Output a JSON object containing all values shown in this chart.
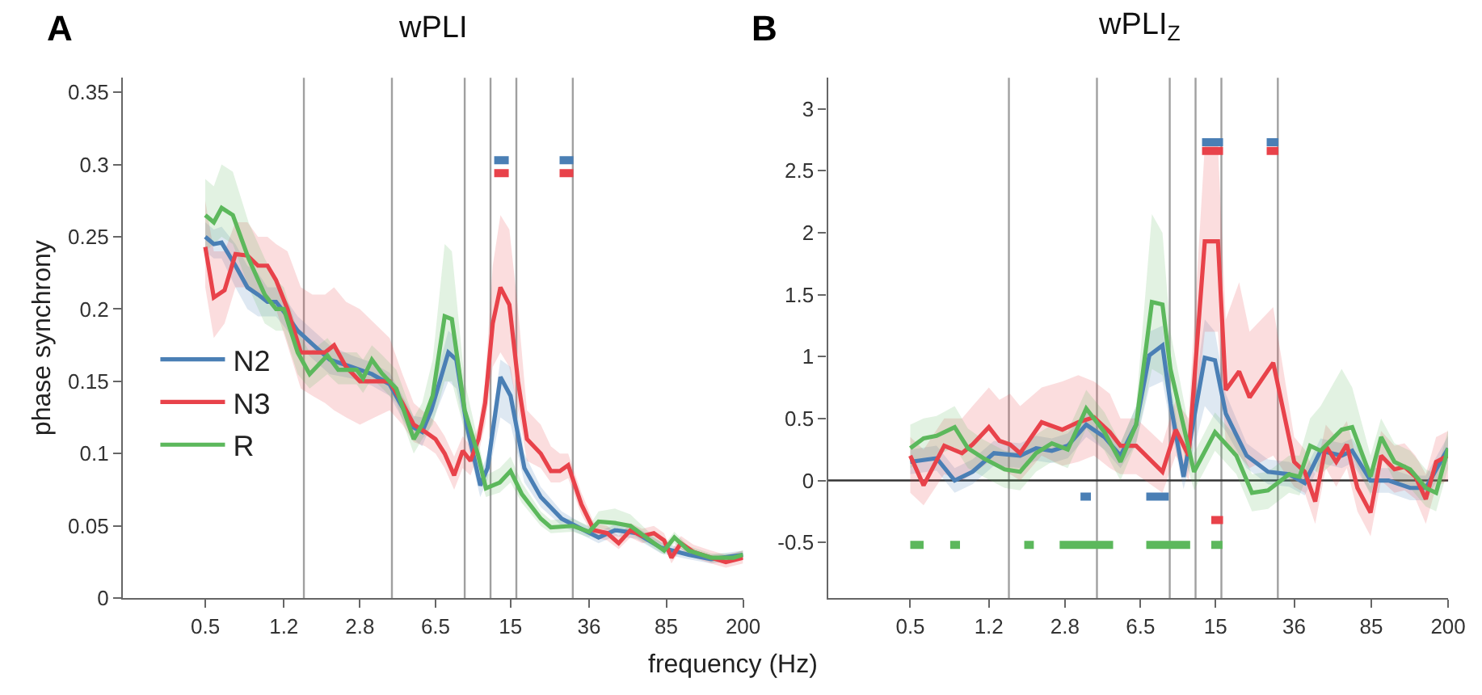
{
  "chart_data": [
    {
      "type": "line",
      "title": "wPLI",
      "xlabel": "frequency (Hz)",
      "ylabel": "phase synchrony",
      "annotations": [
        "A"
      ],
      "log": "x",
      "legend": "bottom left",
      "grid": false,
      "xlim": [
        0.2,
        200
      ],
      "xticks": [
        0.5,
        1.2,
        2.8,
        6.5,
        15,
        36,
        85,
        200
      ],
      "ylim": [
        0,
        0.36
      ],
      "yticks": [
        0,
        0.05,
        0.1,
        0.15,
        0.2,
        0.25,
        0.3,
        0.35
      ],
      "ref_lines": [
        {
          "axis": "x",
          "value": 1.5,
          "color": "#a0a0a0"
        },
        {
          "axis": "x",
          "value": 4,
          "color": "#a0a0a0"
        },
        {
          "axis": "x",
          "value": 9,
          "color": "#a0a0a0"
        },
        {
          "axis": "x",
          "value": 12,
          "color": "#a0a0a0"
        },
        {
          "axis": "x",
          "value": 16,
          "color": "#a0a0a0"
        },
        {
          "axis": "x",
          "value": 30,
          "color": "#a0a0a0"
        }
      ],
      "series": [
        {
          "name": "N2",
          "color": "#4a7fb5",
          "x": [
            0.5,
            0.55,
            0.6,
            0.7,
            0.8,
            0.9,
            1.0,
            1.1,
            1.25,
            1.4,
            1.67,
            2.0,
            2.55,
            3.2,
            3.9,
            5.1,
            5.6,
            6.2,
            7.5,
            8.2,
            9.2,
            10.7,
            11.6,
            13.4,
            15,
            17.5,
            21,
            26.5,
            33,
            40,
            48,
            61,
            80,
            109,
            140,
            200
          ],
          "values": [
            0.25,
            0.245,
            0.246,
            0.23,
            0.215,
            0.21,
            0.205,
            0.205,
            0.195,
            0.185,
            0.175,
            0.165,
            0.16,
            0.155,
            0.148,
            0.118,
            0.115,
            0.13,
            0.17,
            0.165,
            0.12,
            0.078,
            0.09,
            0.153,
            0.14,
            0.09,
            0.07,
            0.055,
            0.048,
            0.042,
            0.047,
            0.045,
            0.035,
            0.03,
            0.027,
            0.03
          ],
          "lower": [
            0.24,
            0.235,
            0.235,
            0.215,
            0.2,
            0.195,
            0.195,
            0.195,
            0.185,
            0.175,
            0.165,
            0.155,
            0.152,
            0.147,
            0.14,
            0.11,
            0.105,
            0.12,
            0.15,
            0.145,
            0.11,
            0.07,
            0.082,
            0.125,
            0.12,
            0.08,
            0.063,
            0.05,
            0.044,
            0.038,
            0.043,
            0.041,
            0.031,
            0.027,
            0.024,
            0.027
          ],
          "upper": [
            0.26,
            0.255,
            0.257,
            0.245,
            0.23,
            0.225,
            0.215,
            0.215,
            0.205,
            0.195,
            0.185,
            0.175,
            0.168,
            0.163,
            0.156,
            0.126,
            0.125,
            0.14,
            0.185,
            0.18,
            0.13,
            0.086,
            0.1,
            0.165,
            0.16,
            0.1,
            0.077,
            0.06,
            0.052,
            0.046,
            0.051,
            0.049,
            0.039,
            0.033,
            0.03,
            0.033
          ]
        },
        {
          "name": "N3",
          "color": "#e8424a",
          "x": [
            0.5,
            0.55,
            0.62,
            0.7,
            0.8,
            0.9,
            1.0,
            1.1,
            1.25,
            1.45,
            1.65,
            1.9,
            2.1,
            2.4,
            2.8,
            3.3,
            3.9,
            4.5,
            5.1,
            5.8,
            6.5,
            7.2,
            8.0,
            8.8,
            9.6,
            10.5,
            11.3,
            12.3,
            13.4,
            14.8,
            16.3,
            18,
            21,
            23.5,
            26,
            28.5,
            33,
            38,
            44,
            50,
            57,
            65,
            74,
            83,
            90,
            100,
            115,
            140,
            165,
            200
          ],
          "values": [
            0.243,
            0.208,
            0.213,
            0.238,
            0.237,
            0.23,
            0.23,
            0.22,
            0.2,
            0.17,
            0.17,
            0.17,
            0.175,
            0.16,
            0.15,
            0.15,
            0.15,
            0.135,
            0.12,
            0.115,
            0.11,
            0.1,
            0.085,
            0.102,
            0.095,
            0.11,
            0.135,
            0.19,
            0.215,
            0.203,
            0.15,
            0.11,
            0.1,
            0.088,
            0.088,
            0.092,
            0.065,
            0.047,
            0.045,
            0.038,
            0.047,
            0.043,
            0.045,
            0.04,
            0.028,
            0.038,
            0.032,
            0.028,
            0.025,
            0.028
          ],
          "lower": [
            0.215,
            0.18,
            0.19,
            0.215,
            0.215,
            0.21,
            0.21,
            0.2,
            0.175,
            0.145,
            0.14,
            0.135,
            0.13,
            0.125,
            0.12,
            0.125,
            0.13,
            0.12,
            0.108,
            0.105,
            0.1,
            0.09,
            0.075,
            0.09,
            0.085,
            0.1,
            0.12,
            0.16,
            0.17,
            0.16,
            0.13,
            0.095,
            0.09,
            0.08,
            0.08,
            0.083,
            0.058,
            0.042,
            0.04,
            0.034,
            0.042,
            0.038,
            0.04,
            0.036,
            0.024,
            0.034,
            0.028,
            0.024,
            0.021,
            0.024
          ],
          "upper": [
            0.275,
            0.24,
            0.24,
            0.26,
            0.26,
            0.25,
            0.25,
            0.245,
            0.24,
            0.215,
            0.21,
            0.21,
            0.215,
            0.205,
            0.2,
            0.19,
            0.18,
            0.155,
            0.135,
            0.128,
            0.122,
            0.112,
            0.098,
            0.112,
            0.105,
            0.12,
            0.15,
            0.23,
            0.265,
            0.255,
            0.2,
            0.13,
            0.12,
            0.105,
            0.1,
            0.1,
            0.073,
            0.052,
            0.05,
            0.043,
            0.052,
            0.048,
            0.05,
            0.045,
            0.033,
            0.043,
            0.037,
            0.033,
            0.03,
            0.033
          ]
        },
        {
          "name": "R",
          "color": "#5cb85c",
          "x": [
            0.5,
            0.55,
            0.6,
            0.68,
            0.81,
            0.97,
            1.1,
            1.2,
            1.4,
            1.6,
            1.95,
            2.2,
            2.7,
            2.9,
            3.2,
            3.6,
            4.2,
            5.1,
            5.6,
            6.3,
            7.2,
            7.8,
            9,
            10.4,
            11.4,
            13.3,
            15,
            17,
            21,
            23.5,
            30,
            36,
            40,
            48,
            57,
            71,
            83,
            93,
            109,
            140,
            180,
            200
          ],
          "values": [
            0.265,
            0.26,
            0.27,
            0.265,
            0.235,
            0.21,
            0.2,
            0.2,
            0.17,
            0.155,
            0.168,
            0.158,
            0.158,
            0.152,
            0.165,
            0.155,
            0.145,
            0.11,
            0.12,
            0.14,
            0.195,
            0.193,
            0.13,
            0.1,
            0.076,
            0.08,
            0.088,
            0.072,
            0.055,
            0.049,
            0.05,
            0.046,
            0.053,
            0.052,
            0.05,
            0.04,
            0.033,
            0.042,
            0.033,
            0.028,
            0.028,
            0.03
          ],
          "lower": [
            0.24,
            0.245,
            0.25,
            0.245,
            0.215,
            0.19,
            0.185,
            0.185,
            0.155,
            0.145,
            0.155,
            0.148,
            0.148,
            0.142,
            0.152,
            0.145,
            0.135,
            0.1,
            0.11,
            0.12,
            0.15,
            0.15,
            0.115,
            0.09,
            0.07,
            0.073,
            0.08,
            0.066,
            0.05,
            0.045,
            0.046,
            0.042,
            0.048,
            0.047,
            0.045,
            0.036,
            0.03,
            0.038,
            0.03,
            0.025,
            0.025,
            0.027
          ],
          "upper": [
            0.29,
            0.285,
            0.3,
            0.295,
            0.26,
            0.235,
            0.22,
            0.215,
            0.185,
            0.17,
            0.18,
            0.17,
            0.17,
            0.165,
            0.175,
            0.168,
            0.158,
            0.125,
            0.135,
            0.165,
            0.245,
            0.24,
            0.15,
            0.11,
            0.085,
            0.09,
            0.098,
            0.08,
            0.06,
            0.054,
            0.055,
            0.05,
            0.06,
            0.062,
            0.058,
            0.045,
            0.037,
            0.046,
            0.036,
            0.031,
            0.031,
            0.033
          ]
        },
        {
          "color": "#4a7fb5",
          "x": [
            12.5,
            14.7
          ],
          "values": [
            0.303,
            0.303
          ]
        },
        {
          "color": "#4a7fb5",
          "x": [
            25.9,
            30.2
          ],
          "values": [
            0.303,
            0.303
          ]
        },
        {
          "color": "#e8424a",
          "x": [
            12.5,
            14.7
          ],
          "values": [
            0.294,
            0.294
          ]
        },
        {
          "color": "#e8424a",
          "x": [
            25.9,
            30.2
          ],
          "values": [
            0.294,
            0.294
          ]
        }
      ]
    },
    {
      "type": "line",
      "title": "wPLI$_{Z}$",
      "annotations": [
        "B"
      ],
      "log": "x",
      "grid": false,
      "xlim": [
        0.2,
        200
      ],
      "xticks": [
        0.5,
        1.2,
        2.8,
        6.5,
        15,
        36,
        85,
        200
      ],
      "ylim": [
        -0.95,
        3.25
      ],
      "yticks": [
        -0.5,
        0,
        0.5,
        1,
        1.5,
        2,
        2.5,
        3
      ],
      "ref_lines": [
        {
          "axis": "x",
          "value": 1.5,
          "color": "#a0a0a0"
        },
        {
          "axis": "x",
          "value": 4,
          "color": "#a0a0a0"
        },
        {
          "axis": "x",
          "value": 9,
          "color": "#a0a0a0"
        },
        {
          "axis": "x",
          "value": 12,
          "color": "#a0a0a0"
        },
        {
          "axis": "x",
          "value": 16,
          "color": "#a0a0a0"
        },
        {
          "axis": "x",
          "value": 30,
          "color": "#a0a0a0"
        },
        {
          "axis": "y",
          "value": 0,
          "color": "#333333"
        }
      ],
      "series": [
        {
          "color": "#4a7fb5",
          "x": [
            0.5,
            0.67,
            0.82,
            1.0,
            1.27,
            1.7,
            2.03,
            2.42,
            2.89,
            3.55,
            4.35,
            5.2,
            6.19,
            7.17,
            8.3,
            9.07,
            10.5,
            13.3,
            14.9,
            16.8,
            21.2,
            26.9,
            34,
            40.5,
            48.3,
            61.1,
            68.7,
            84.3,
            103,
            131,
            156,
            200
          ],
          "values": [
            0.15,
            0.18,
            0.0,
            0.07,
            0.22,
            0.2,
            0.26,
            0.24,
            0.28,
            0.45,
            0.35,
            0.2,
            0.45,
            1.01,
            1.09,
            0.62,
            0.03,
            0.99,
            0.97,
            0.54,
            0.2,
            0.07,
            0.05,
            -0.02,
            0.24,
            0.2,
            0.24,
            0.0,
            0.0,
            -0.06,
            -0.06,
            0.26
          ],
          "lower": [
            0.05,
            0.08,
            -0.1,
            -0.03,
            0.12,
            0.1,
            0.16,
            0.14,
            0.18,
            0.35,
            0.25,
            0.1,
            0.3,
            0.75,
            0.8,
            0.45,
            -0.07,
            0.6,
            0.5,
            0.4,
            0.1,
            -0.03,
            -0.05,
            -0.12,
            0.14,
            0.1,
            0.14,
            -0.1,
            -0.1,
            -0.16,
            -0.16,
            0.16
          ],
          "upper": [
            0.25,
            0.28,
            0.1,
            0.17,
            0.32,
            0.3,
            0.36,
            0.34,
            0.38,
            0.55,
            0.45,
            0.3,
            0.6,
            1.2,
            1.25,
            0.8,
            0.13,
            1.3,
            1.2,
            0.7,
            0.3,
            0.17,
            0.15,
            0.08,
            0.34,
            0.3,
            0.34,
            0.1,
            0.1,
            0.04,
            0.04,
            0.36
          ]
        },
        {
          "color": "#e8424a",
          "x": [
            0.5,
            0.58,
            0.73,
            0.89,
            1.0,
            1.2,
            1.35,
            1.52,
            1.7,
            2.16,
            2.72,
            3.25,
            3.87,
            4.62,
            5.2,
            6.19,
            8.3,
            9.62,
            11.1,
            13.3,
            15.4,
            16.8,
            19.5,
            21.9,
            28.5,
            36,
            40.5,
            45.5,
            51.2,
            57.5,
            64.7,
            72.8,
            84.3,
            94.8,
            110,
            123,
            139,
            156,
            175,
            200
          ],
          "values": [
            0.2,
            -0.04,
            0.28,
            0.22,
            0.29,
            0.43,
            0.32,
            0.29,
            0.22,
            0.47,
            0.41,
            0.47,
            0.51,
            0.39,
            0.28,
            0.28,
            0.07,
            0.41,
            0.2,
            1.93,
            1.93,
            0.73,
            0.88,
            0.67,
            0.95,
            0.15,
            0.07,
            -0.17,
            0.28,
            0.15,
            0.29,
            -0.06,
            -0.26,
            0.2,
            0.09,
            0.11,
            0.03,
            -0.15,
            0.15,
            0.2
          ],
          "lower": [
            -0.1,
            -0.2,
            0.05,
            0.0,
            0.05,
            0.15,
            0.1,
            0.05,
            0.0,
            0.2,
            0.12,
            0.15,
            0.2,
            0.1,
            0.05,
            0.05,
            -0.1,
            0.2,
            0.0,
            1.2,
            1.2,
            0.3,
            0.2,
            0.1,
            0.2,
            -0.05,
            -0.1,
            -0.35,
            0.1,
            -0.05,
            0.1,
            -0.25,
            -0.45,
            0.0,
            -0.1,
            -0.08,
            -0.15,
            -0.35,
            -0.05,
            0.0
          ],
          "upper": [
            0.35,
            0.25,
            0.5,
            0.5,
            0.6,
            0.75,
            0.65,
            0.7,
            0.6,
            0.75,
            0.8,
            0.85,
            0.8,
            0.7,
            0.5,
            0.5,
            0.3,
            0.65,
            0.5,
            2.7,
            2.7,
            1.3,
            1.6,
            1.2,
            1.4,
            0.35,
            0.25,
            0.05,
            0.45,
            0.35,
            0.48,
            0.15,
            -0.05,
            0.4,
            0.28,
            0.3,
            0.2,
            0.05,
            0.35,
            0.4
          ]
        },
        {
          "color": "#5cb85c",
          "x": [
            0.5,
            0.58,
            0.67,
            0.82,
            0.95,
            1.13,
            1.43,
            1.7,
            2.03,
            2.42,
            2.89,
            3.55,
            4.35,
            5.2,
            6.19,
            7.38,
            8.3,
            9.07,
            11.8,
            14.9,
            18.9,
            22.5,
            26.9,
            34,
            38.2,
            43,
            48.3,
            61.1,
            68.7,
            84.3,
            94.8,
            110,
            131,
            156,
            175,
            200
          ],
          "values": [
            0.26,
            0.34,
            0.36,
            0.43,
            0.26,
            0.18,
            0.09,
            0.07,
            0.22,
            0.3,
            0.25,
            0.58,
            0.39,
            0.15,
            0.45,
            1.44,
            1.42,
            0.9,
            0.07,
            0.39,
            0.2,
            -0.1,
            -0.08,
            0.05,
            0.03,
            0.28,
            0.24,
            0.41,
            0.43,
            0.03,
            0.35,
            0.15,
            0.09,
            -0.06,
            -0.1,
            0.26
          ],
          "lower": [
            0.1,
            0.18,
            0.2,
            0.27,
            0.1,
            0.03,
            -0.06,
            -0.08,
            0.07,
            0.15,
            0.1,
            0.42,
            0.24,
            0.0,
            0.3,
            0.9,
            0.85,
            0.6,
            -0.08,
            0.24,
            0.05,
            -0.25,
            -0.23,
            -0.1,
            -0.12,
            0.1,
            0.05,
            0.2,
            0.2,
            -0.12,
            0.2,
            0.0,
            -0.06,
            -0.21,
            -0.25,
            0.1
          ],
          "upper": [
            0.45,
            0.5,
            0.52,
            0.6,
            0.42,
            0.33,
            0.24,
            0.22,
            0.37,
            0.45,
            0.4,
            0.73,
            0.55,
            0.3,
            0.6,
            2.15,
            2.0,
            1.2,
            0.22,
            0.55,
            0.35,
            0.05,
            0.07,
            0.2,
            0.2,
            0.5,
            0.6,
            0.9,
            0.75,
            0.2,
            0.5,
            0.3,
            0.24,
            0.09,
            0.05,
            0.41
          ]
        },
        {
          "color": "#4a7fb5",
          "x": [
            12.9,
            16.3
          ],
          "values": [
            2.73,
            2.73
          ]
        },
        {
          "color": "#4a7fb5",
          "x": [
            26.5,
            30.2
          ],
          "values": [
            2.73,
            2.73
          ]
        },
        {
          "color": "#e8424a",
          "x": [
            12.9,
            16.3
          ],
          "values": [
            2.66,
            2.66
          ]
        },
        {
          "color": "#e8424a",
          "x": [
            26.5,
            30.2
          ],
          "values": [
            2.66,
            2.66
          ]
        },
        {
          "color": "#4a7fb5",
          "x": [
            3.33,
            3.74
          ],
          "values": [
            -0.13,
            -0.13
          ]
        },
        {
          "color": "#4a7fb5",
          "x": [
            6.93,
            8.9
          ],
          "values": [
            -0.13,
            -0.13
          ]
        },
        {
          "color": "#e8424a",
          "x": [
            14.3,
            16.3
          ],
          "values": [
            -0.32,
            -0.32
          ]
        },
        {
          "color": "#5cb85c",
          "x": [
            0.5,
            0.58
          ],
          "values": [
            -0.52,
            -0.52
          ]
        },
        {
          "color": "#5cb85c",
          "x": [
            0.78,
            0.87
          ],
          "values": [
            -0.52,
            -0.52
          ]
        },
        {
          "color": "#5cb85c",
          "x": [
            1.78,
            1.98
          ],
          "values": [
            -0.52,
            -0.52
          ]
        },
        {
          "color": "#5cb85c",
          "x": [
            2.64,
            4.79
          ],
          "values": [
            -0.52,
            -0.52
          ]
        },
        {
          "color": "#5cb85c",
          "x": [
            6.93,
            11.3
          ],
          "values": [
            -0.52,
            -0.52
          ]
        },
        {
          "color": "#5cb85c",
          "x": [
            14.3,
            16.2
          ],
          "values": [
            -0.52,
            -0.52
          ]
        }
      ]
    }
  ]
}
